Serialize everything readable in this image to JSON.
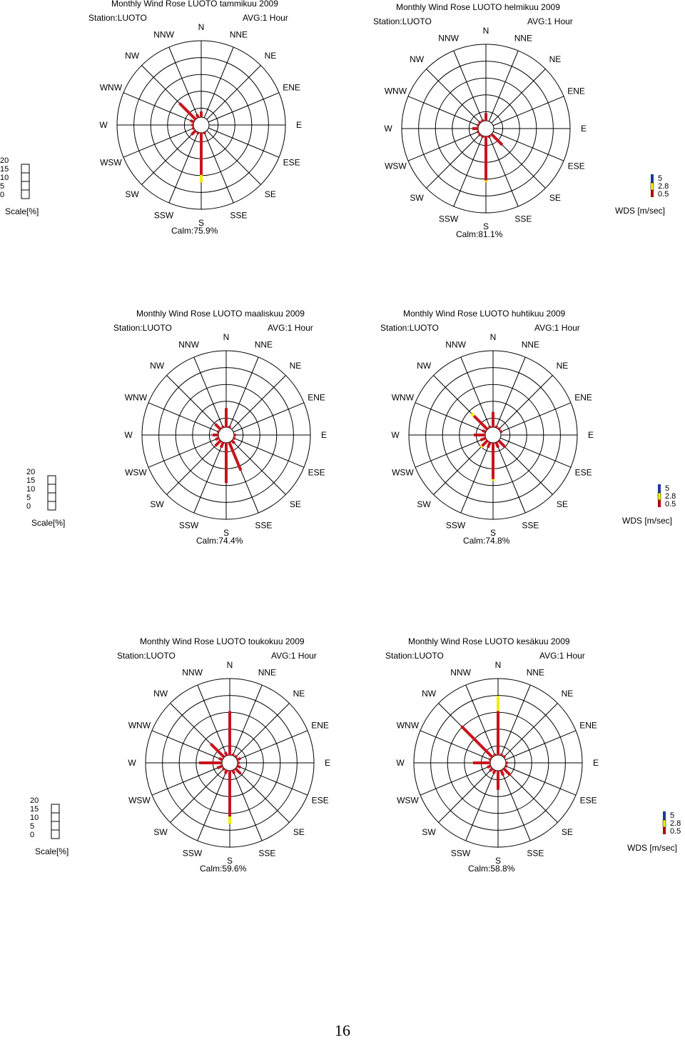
{
  "page_number": "16",
  "scale_legend": {
    "title": "Scale[%]",
    "ticks": [
      "20",
      "15",
      "10",
      "5",
      "0"
    ]
  },
  "wds_legend": {
    "title": "WDS [m/sec]",
    "ticks": [
      "5",
      "2.8",
      "0.5"
    ],
    "colors": [
      "#1a3a9c",
      "#f2f20a",
      "#b00000"
    ]
  },
  "directions": [
    "N",
    "NNE",
    "NE",
    "ENE",
    "E",
    "ESE",
    "SE",
    "SSE",
    "S",
    "SSW",
    "SW",
    "WSW",
    "W",
    "WNW",
    "NW",
    "NNW"
  ],
  "station_label": "Station:LUOTO",
  "avg_label": "AVG:1 Hour",
  "chart_data": [
    {
      "type": "wind-rose",
      "title": "Monthly Wind Rose LUOTO tammikuu 2009",
      "calm": "Calm:75.9%",
      "rmax": 20,
      "values": [
        1.5,
        0,
        0,
        0,
        0,
        0,
        0,
        0.5,
        13,
        0.5,
        1.5,
        0.5,
        0.5,
        1,
        6,
        1
      ],
      "yellow": [
        0,
        0,
        0,
        0,
        0,
        0,
        0,
        0,
        2,
        0,
        0,
        0,
        0,
        0,
        0,
        0
      ]
    },
    {
      "type": "wind-rose",
      "title": "Monthly Wind Rose LUOTO helmikuu 2009",
      "calm": "Calm:81.1%",
      "rmax": 20,
      "values": [
        2,
        0,
        0,
        0,
        0,
        0,
        4,
        0.5,
        12,
        0.5,
        0.5,
        0.5,
        1.5,
        0.5,
        0.5,
        0.5
      ],
      "yellow": [
        0,
        0,
        0,
        0,
        0,
        0,
        0,
        0,
        0.5,
        0,
        0,
        0,
        0,
        0,
        0,
        0
      ]
    },
    {
      "type": "wind-rose",
      "title": "Monthly Wind Rose LUOTO maaliskuu 2009",
      "calm": "Calm:74.4%",
      "rmax": 20,
      "values": [
        5,
        0.5,
        0,
        0,
        0.5,
        0.5,
        1,
        8,
        10.5,
        1.5,
        2,
        1,
        1.5,
        0.5,
        2,
        0.5
      ],
      "yellow": [
        0,
        0,
        0,
        0,
        0,
        0,
        0,
        0,
        0,
        0,
        0,
        0,
        0,
        0,
        0,
        0
      ]
    },
    {
      "type": "wind-rose",
      "title": "Monthly Wind Rose LUOTO huhtikuu 2009",
      "calm": "Calm:74.8%",
      "rmax": 20,
      "values": [
        4,
        0.5,
        0.5,
        0.5,
        0,
        0,
        2.5,
        1.5,
        10,
        1.5,
        2.5,
        1.5,
        3,
        1,
        6,
        0.5
      ],
      "yellow": [
        0,
        0,
        0,
        0,
        0,
        0,
        0,
        0,
        0.5,
        0,
        0.5,
        0,
        0,
        0,
        1,
        0
      ]
    },
    {
      "type": "wind-rose",
      "title": "Monthly Wind Rose LUOTO toukokuu 2009",
      "calm": "Calm:59.6%",
      "rmax": 20,
      "values": [
        11.5,
        0.5,
        0.5,
        1,
        0.5,
        1,
        2,
        1,
        14,
        1,
        0.5,
        1.5,
        6,
        1,
        5,
        1
      ],
      "yellow": [
        0,
        0,
        0,
        0,
        0,
        0,
        0,
        0,
        2,
        0,
        0,
        0,
        0,
        0,
        0,
        0
      ]
    },
    {
      "type": "wind-rose",
      "title": "Monthly Wind Rose LUOTO kesäkuu 2009",
      "calm": "Calm:58.8%",
      "rmax": 20,
      "values": [
        15.5,
        0.5,
        0.5,
        0,
        0.5,
        0.5,
        2.5,
        1.5,
        5,
        1,
        1,
        1,
        4.5,
        0.5,
        11.5,
        0.5
      ],
      "yellow": [
        4,
        0,
        0,
        0,
        0,
        0,
        0,
        0,
        0,
        0,
        0,
        0,
        0,
        0,
        0,
        0
      ]
    }
  ]
}
